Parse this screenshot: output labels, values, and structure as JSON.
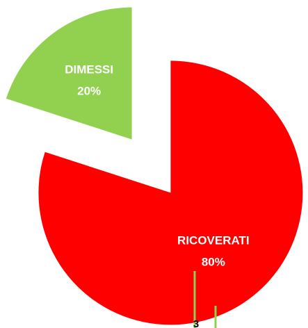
{
  "chart_data": {
    "type": "pie",
    "categories": [
      "DIMESSI",
      "RICOVERATI"
    ],
    "values": [
      20,
      80
    ],
    "value_labels": [
      "20%",
      "80%"
    ],
    "colors": [
      "#92d050",
      "#ff0000"
    ],
    "exploded": true,
    "annotations": [
      "3"
    ]
  }
}
